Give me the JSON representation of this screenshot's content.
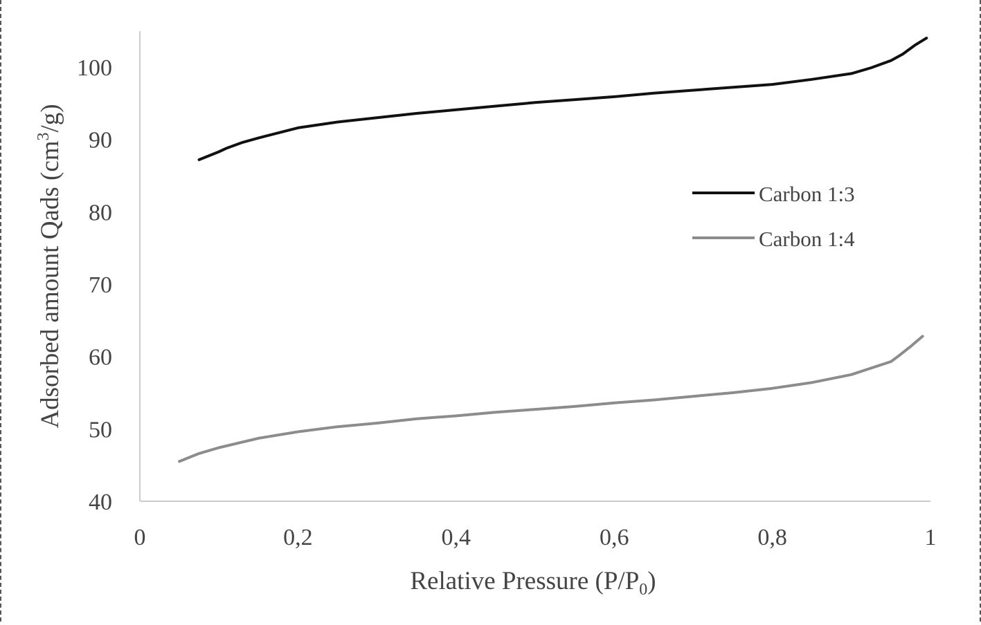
{
  "chart_data": {
    "type": "line",
    "xlabel_main": "Relative Pressure (P/P",
    "xlabel_sub": "0",
    "xlabel_end": ")",
    "ylabel_main": "Adsorbed amount Qads (cm",
    "ylabel_sup": "3",
    "ylabel_end": "/g)",
    "xlim": [
      0,
      1
    ],
    "ylim": [
      40,
      105
    ],
    "x_ticks": [
      0,
      0.2,
      0.4,
      0.6,
      0.8,
      1
    ],
    "x_tick_labels": [
      "0",
      "0,2",
      "0,4",
      "0,6",
      "0,8",
      "1"
    ],
    "y_ticks": [
      40,
      50,
      60,
      70,
      80,
      90,
      100
    ],
    "y_tick_labels": [
      "40",
      "50",
      "60",
      "70",
      "80",
      "90",
      "100"
    ],
    "grid": false,
    "legend_position": "right",
    "series": [
      {
        "name": "Carbon 1:3",
        "color": "#111111",
        "x": [
          0.075,
          0.1,
          0.11,
          0.13,
          0.15,
          0.2,
          0.25,
          0.3,
          0.35,
          0.4,
          0.45,
          0.5,
          0.55,
          0.6,
          0.65,
          0.7,
          0.75,
          0.8,
          0.85,
          0.9,
          0.925,
          0.95,
          0.965,
          0.98,
          0.995
        ],
        "y": [
          87.2,
          88.3,
          88.8,
          89.6,
          90.2,
          91.6,
          92.4,
          93.0,
          93.6,
          94.1,
          94.6,
          95.1,
          95.5,
          95.9,
          96.4,
          96.8,
          97.2,
          97.6,
          98.3,
          99.1,
          99.9,
          100.9,
          101.8,
          103.0,
          104.0
        ]
      },
      {
        "name": "Carbon 1:4",
        "color": "#8c8c8c",
        "x": [
          0.05,
          0.075,
          0.1,
          0.15,
          0.2,
          0.25,
          0.3,
          0.35,
          0.4,
          0.45,
          0.5,
          0.55,
          0.6,
          0.65,
          0.7,
          0.75,
          0.8,
          0.85,
          0.9,
          0.925,
          0.95,
          0.96,
          0.975,
          0.99
        ],
        "y": [
          45.5,
          46.6,
          47.4,
          48.7,
          49.6,
          50.3,
          50.8,
          51.4,
          51.8,
          52.3,
          52.7,
          53.1,
          53.6,
          54.0,
          54.5,
          55.0,
          55.6,
          56.4,
          57.5,
          58.4,
          59.3,
          60.1,
          61.4,
          62.8
        ]
      }
    ]
  }
}
